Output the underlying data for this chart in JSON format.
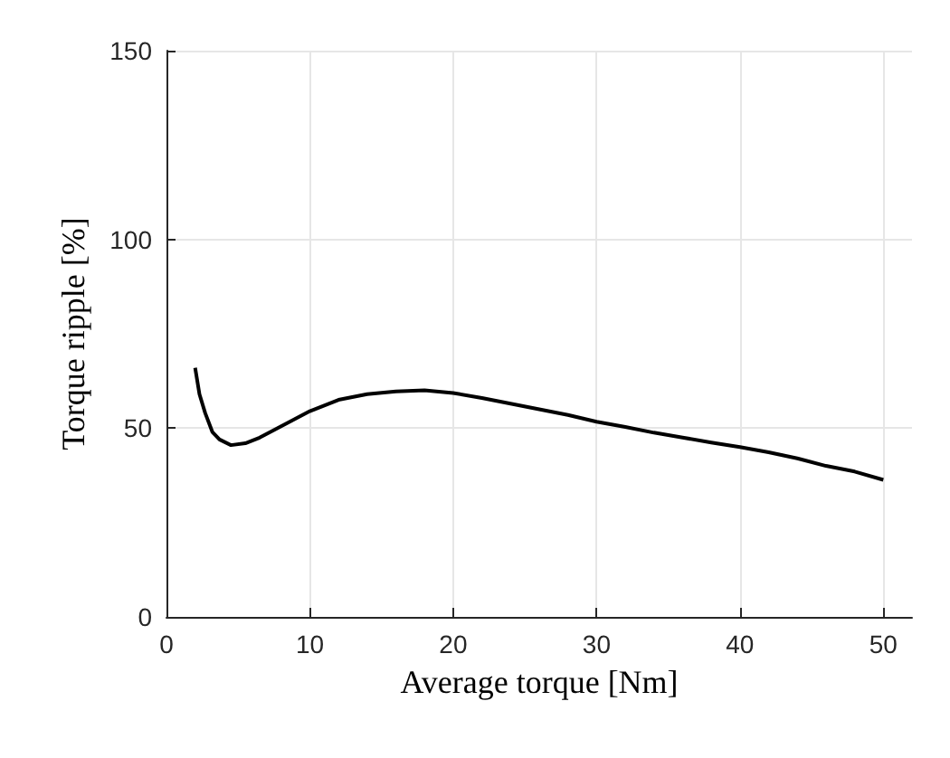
{
  "chart_data": {
    "type": "line",
    "xlabel": "Average torque [Nm]",
    "ylabel": "Torque ripple [%]",
    "xlim": [
      0,
      52
    ],
    "xticks": [
      0,
      10,
      20,
      30,
      40,
      50
    ],
    "ylim": [
      0,
      150
    ],
    "yticks": [
      0,
      50,
      100,
      150
    ],
    "grid": true,
    "marker": "none",
    "line_style": "solid",
    "series": [
      {
        "color": "#000000",
        "x": [
          2,
          2.3,
          2.7,
          3.2,
          3.7,
          4.5,
          5.5,
          6.5,
          8,
          10,
          12,
          14,
          16,
          18,
          20,
          22,
          24,
          26,
          28,
          30,
          32,
          34,
          36,
          38,
          40,
          42,
          44,
          46,
          48,
          50
        ],
        "values": [
          66,
          59,
          54,
          49,
          47,
          45.5,
          46,
          47.5,
          50.5,
          54.5,
          57.5,
          59,
          59.7,
          60,
          59.3,
          58,
          56.5,
          55,
          53.5,
          51.7,
          50.3,
          48.8,
          47.5,
          46.2,
          45,
          43.6,
          42,
          40,
          38.5,
          36.3
        ]
      }
    ]
  }
}
